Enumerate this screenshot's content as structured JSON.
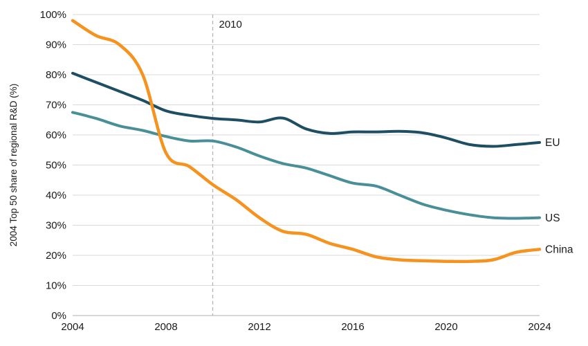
{
  "chart_data": {
    "type": "line",
    "title": "",
    "ylabel": "2004 Top 50 share of regional R&D (%)",
    "xlabel": "",
    "xlim": [
      2004,
      2024
    ],
    "ylim": [
      0,
      100
    ],
    "xticks": [
      2004,
      2008,
      2012,
      2016,
      2020,
      2024
    ],
    "yticks": [
      0,
      10,
      20,
      30,
      40,
      50,
      60,
      70,
      80,
      90,
      100
    ],
    "ytick_suffix": "%",
    "grid": true,
    "legend_position": "right-end-labels",
    "x": [
      2004,
      2005,
      2006,
      2007,
      2008,
      2009,
      2010,
      2011,
      2012,
      2013,
      2014,
      2015,
      2016,
      2017,
      2018,
      2019,
      2020,
      2021,
      2022,
      2023,
      2024
    ],
    "series": [
      {
        "name": "EU",
        "color": "#1d4e63",
        "stroke_width": 4,
        "values": [
          80.5,
          77.5,
          74.5,
          71.5,
          68.0,
          66.5,
          65.5,
          65.0,
          64.3,
          65.6,
          62.0,
          60.5,
          61.0,
          61.0,
          61.2,
          60.7,
          59.0,
          56.8,
          56.2,
          56.8,
          57.5
        ]
      },
      {
        "name": "US",
        "color": "#488f97",
        "stroke_width": 4,
        "values": [
          67.5,
          65.5,
          63.0,
          61.5,
          59.5,
          58.0,
          58.0,
          56.0,
          53.0,
          50.5,
          49.0,
          46.5,
          44.0,
          43.0,
          40.0,
          37.0,
          35.0,
          33.5,
          32.5,
          32.3,
          32.5
        ]
      },
      {
        "name": "China",
        "color": "#f6921e",
        "stroke_width": 4.5,
        "values": [
          98.0,
          93.0,
          90.0,
          80.0,
          54.0,
          49.5,
          43.5,
          38.5,
          32.5,
          28.0,
          27.0,
          24.0,
          22.0,
          19.5,
          18.5,
          18.2,
          18.0,
          18.0,
          18.5,
          21.0,
          22.0
        ]
      }
    ],
    "annotation": {
      "x": 2010,
      "label": "2010"
    },
    "colors": {
      "gridline": "#d9d9d9",
      "baseline": "#bfbfbf",
      "annotation_line": "#b3b3b3",
      "text": "#1a1a1a"
    }
  }
}
